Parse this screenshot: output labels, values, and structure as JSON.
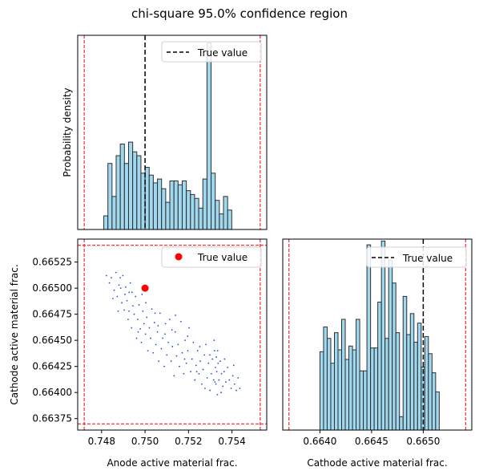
{
  "title": "chi-square 95.0% confidence region",
  "colors": {
    "hist_fill": "#87ceeb",
    "hist_edge": "#2f2f2f",
    "scatter": "#1f4fd6",
    "true_marker": "#ff0000",
    "bounds": "#ff0000",
    "true_line": "#000000"
  },
  "chart_data": [
    {
      "type": "bar",
      "subtype": "histogram",
      "panel": "top-left",
      "ylabel": "Probability density",
      "legend": {
        "label": "True value",
        "position": "top-right",
        "marker": "dashed-line"
      },
      "xlim": [
        0.7469,
        0.7556
      ],
      "ylim": [
        0,
        10
      ],
      "true_value": 0.75,
      "bounds": [
        0.7472,
        0.7553
      ],
      "bin_edges": [
        0.7481,
        0.74829,
        0.74848,
        0.74867,
        0.74886,
        0.74905,
        0.74924,
        0.74943,
        0.74962,
        0.74981,
        0.75,
        0.75019,
        0.75038,
        0.75057,
        0.75076,
        0.75095,
        0.75114,
        0.75133,
        0.75152,
        0.75171,
        0.7519,
        0.75209,
        0.75228,
        0.75247,
        0.75266,
        0.75285,
        0.75304,
        0.75323,
        0.75342,
        0.75361,
        0.7538,
        0.75399,
        0.75418,
        0.75437
      ],
      "values": [
        0.7,
        3.4,
        1.7,
        3.8,
        4.4,
        3.4,
        4.5,
        4.0,
        3.8,
        2.9,
        3.2,
        2.8,
        2.4,
        2.6,
        2.1,
        1.4,
        2.5,
        2.5,
        2.3,
        2.5,
        2.0,
        1.8,
        1.6,
        1.1,
        2.6,
        9.6,
        2.9,
        1.5,
        0.8,
        1.7,
        1.0,
        0,
        0
      ],
      "grid": false
    },
    {
      "type": "scatter",
      "panel": "bottom-left",
      "xlabel": "Anode active material frac.",
      "ylabel": "Cathode active material frac.",
      "legend": {
        "label": "True value",
        "position": "top-right",
        "marker": "red-dot"
      },
      "xlim": [
        0.7469,
        0.7556
      ],
      "ylim": [
        0.66364,
        0.66547
      ],
      "xticks": [
        "0.748",
        "0.750",
        "0.752",
        "0.754"
      ],
      "yticks": [
        "0.66375",
        "0.66400",
        "0.66425",
        "0.66450",
        "0.66475",
        "0.66500",
        "0.66525"
      ],
      "true_point": [
        0.75,
        0.665
      ],
      "bounds_x": [
        0.7472,
        0.7553
      ],
      "bounds_y": [
        0.6637,
        0.66541
      ],
      "points": [
        [
          0.74822,
          0.66512
        ],
        [
          0.74836,
          0.66505
        ],
        [
          0.74845,
          0.6651
        ],
        [
          0.74858,
          0.66498
        ],
        [
          0.74866,
          0.66515
        ],
        [
          0.74872,
          0.66492
        ],
        [
          0.7488,
          0.66503
        ],
        [
          0.74886,
          0.6651
        ],
        [
          0.74893,
          0.66486
        ],
        [
          0.74898,
          0.66512
        ],
        [
          0.74904,
          0.66479
        ],
        [
          0.74911,
          0.66501
        ],
        [
          0.74917,
          0.66488
        ],
        [
          0.74922,
          0.6647
        ],
        [
          0.74927,
          0.66496
        ],
        [
          0.74932,
          0.66505
        ],
        [
          0.74938,
          0.66462
        ],
        [
          0.74944,
          0.66483
        ],
        [
          0.7495,
          0.66475
        ],
        [
          0.74956,
          0.66492
        ],
        [
          0.74961,
          0.66452
        ],
        [
          0.74966,
          0.6647
        ],
        [
          0.74972,
          0.66484
        ],
        [
          0.74978,
          0.66461
        ],
        [
          0.74983,
          0.66448
        ],
        [
          0.7499,
          0.66478
        ],
        [
          0.74995,
          0.66466
        ],
        [
          0.75002,
          0.66456
        ],
        [
          0.75008,
          0.66472
        ],
        [
          0.75013,
          0.6644
        ],
        [
          0.7502,
          0.66462
        ],
        [
          0.75026,
          0.66452
        ],
        [
          0.75031,
          0.6648
        ],
        [
          0.75037,
          0.66438
        ],
        [
          0.75043,
          0.66467
        ],
        [
          0.7505,
          0.66446
        ],
        [
          0.75057,
          0.66458
        ],
        [
          0.75063,
          0.6643
        ],
        [
          0.75069,
          0.66476
        ],
        [
          0.75075,
          0.66442
        ],
        [
          0.75081,
          0.66452
        ],
        [
          0.75088,
          0.66425
        ],
        [
          0.75094,
          0.66466
        ],
        [
          0.751,
          0.66436
        ],
        [
          0.75107,
          0.66448
        ],
        [
          0.75113,
          0.6647
        ],
        [
          0.7512,
          0.6643
        ],
        [
          0.75126,
          0.66444
        ],
        [
          0.75133,
          0.66416
        ],
        [
          0.75139,
          0.66458
        ],
        [
          0.75145,
          0.66435
        ],
        [
          0.75152,
          0.66446
        ],
        [
          0.75158,
          0.66425
        ],
        [
          0.75165,
          0.66468
        ],
        [
          0.75171,
          0.66438
        ],
        [
          0.75178,
          0.66418
        ],
        [
          0.75184,
          0.6645
        ],
        [
          0.7519,
          0.66428
        ],
        [
          0.75197,
          0.6644
        ],
        [
          0.75203,
          0.66462
        ],
        [
          0.7521,
          0.6642
        ],
        [
          0.75216,
          0.66432
        ],
        [
          0.75222,
          0.66448
        ],
        [
          0.75229,
          0.66412
        ],
        [
          0.75235,
          0.66426
        ],
        [
          0.75242,
          0.6644
        ],
        [
          0.75248,
          0.66418
        ],
        [
          0.75254,
          0.6643
        ],
        [
          0.75261,
          0.66408
        ],
        [
          0.75267,
          0.66422
        ],
        [
          0.75273,
          0.66436
        ],
        [
          0.7528,
          0.66446
        ],
        [
          0.75286,
          0.66414
        ],
        [
          0.75292,
          0.66428
        ],
        [
          0.75299,
          0.66402
        ],
        [
          0.75305,
          0.66418
        ],
        [
          0.7531,
          0.66432
        ],
        [
          0.75316,
          0.66412
        ],
        [
          0.7532,
          0.6644
        ],
        [
          0.75324,
          0.66424
        ],
        [
          0.75326,
          0.66408
        ],
        [
          0.75328,
          0.66434
        ],
        [
          0.7533,
          0.6642
        ],
        [
          0.75333,
          0.66398
        ],
        [
          0.75336,
          0.66428
        ],
        [
          0.7534,
          0.66412
        ],
        [
          0.75346,
          0.6643
        ],
        [
          0.75352,
          0.66418
        ],
        [
          0.75358,
          0.66406
        ],
        [
          0.75364,
          0.6642
        ],
        [
          0.75372,
          0.6641
        ],
        [
          0.7538,
          0.66424
        ],
        [
          0.75388,
          0.66412
        ],
        [
          0.75396,
          0.66404
        ],
        [
          0.75404,
          0.66416
        ],
        [
          0.75412,
          0.66408
        ],
        [
          0.7542,
          0.66402
        ],
        [
          0.75428,
          0.66414
        ],
        [
          0.75436,
          0.66404
        ],
        [
          0.74852,
          0.6649
        ],
        [
          0.74876,
          0.66478
        ],
        [
          0.74908,
          0.66494
        ],
        [
          0.7494,
          0.66496
        ],
        [
          0.74968,
          0.66458
        ],
        [
          0.75004,
          0.66486
        ],
        [
          0.75046,
          0.66476
        ],
        [
          0.75092,
          0.66456
        ],
        [
          0.7514,
          0.66474
        ],
        [
          0.75196,
          0.66454
        ],
        [
          0.75252,
          0.66444
        ],
        [
          0.75298,
          0.66436
        ],
        [
          0.75318,
          0.6645
        ],
        [
          0.75334,
          0.6644
        ],
        [
          0.7535,
          0.664
        ],
        [
          0.75408,
          0.66426
        ],
        [
          0.74888,
          0.665
        ],
        [
          0.74926,
          0.66478
        ],
        [
          0.74986,
          0.66494
        ],
        [
          0.7506,
          0.66464
        ],
        [
          0.75124,
          0.6646
        ],
        [
          0.75182,
          0.66432
        ],
        [
          0.75238,
          0.6642
        ],
        [
          0.75276,
          0.66404
        ],
        [
          0.75322,
          0.6641
        ],
        [
          0.75366,
          0.66432
        ]
      ],
      "grid": false
    },
    {
      "type": "bar",
      "subtype": "histogram",
      "panel": "bottom-right",
      "xlabel": "Cathode active material frac.",
      "legend": {
        "label": "True value",
        "position": "top-right",
        "marker": "dashed-line"
      },
      "xlim": [
        0.66364,
        0.66547
      ],
      "ylim": [
        0,
        10
      ],
      "xticks": [
        "0.6640",
        "0.6645",
        "0.6650"
      ],
      "true_value": 0.665,
      "bounds": [
        0.6637,
        0.66541
      ],
      "bin_edges": [
        0.664,
        0.664035,
        0.66407,
        0.664105,
        0.66414,
        0.664175,
        0.66421,
        0.664245,
        0.66428,
        0.664315,
        0.66435,
        0.664385,
        0.66442,
        0.664455,
        0.66449,
        0.664525,
        0.66456,
        0.664595,
        0.66463,
        0.664665,
        0.6647,
        0.664735,
        0.66477,
        0.664805,
        0.66484,
        0.664875,
        0.66491,
        0.664945,
        0.66498,
        0.665015,
        0.66505,
        0.665085,
        0.66512,
        0.665155
      ],
      "values": [
        4.1,
        5.4,
        4.8,
        3.5,
        5.1,
        4.2,
        5.8,
        3.7,
        4.4,
        4.2,
        5.8,
        3.1,
        3.1,
        9.7,
        4.3,
        4.3,
        6.7,
        9.9,
        4.8,
        8.9,
        7.7,
        5.1,
        0.7,
        7.0,
        5.0,
        6.1,
        4.6,
        5.6,
        3.3,
        4.9,
        4.0,
        3.0,
        2.0
      ],
      "grid": false
    }
  ]
}
